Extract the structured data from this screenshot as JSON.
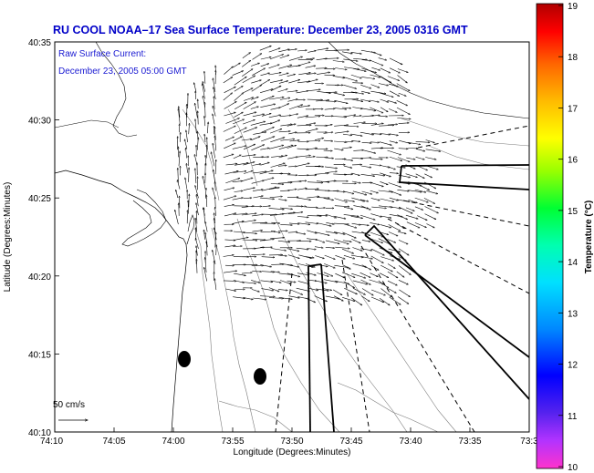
{
  "title": "RU COOL  NOAA–17  Sea Surface Temperature:  December 23, 2005 0316 GMT",
  "overlay": {
    "line1": "Raw Surface Current:",
    "line2": "December 23, 2005 05:00 GMT"
  },
  "scale_label": "50 cm/s",
  "x_axis": {
    "label": "Longitude (Degrees:Minutes)",
    "ticks": [
      "74:10",
      "74:05",
      "74:00",
      "73:55",
      "73:50",
      "73:45",
      "73:40",
      "73:35",
      "73:3"
    ]
  },
  "y_axis": {
    "label": "Latitude (Degrees:Minutes)",
    "ticks": [
      "40:35",
      "40:30",
      "40:25",
      "40:20",
      "40:15",
      "40:10"
    ]
  },
  "colorbar": {
    "label": "Temperature (°C)",
    "ticks": [
      "19",
      "18",
      "17",
      "16",
      "15",
      "14",
      "13",
      "12",
      "11",
      "10"
    ],
    "min": 10,
    "max": 19
  }
}
